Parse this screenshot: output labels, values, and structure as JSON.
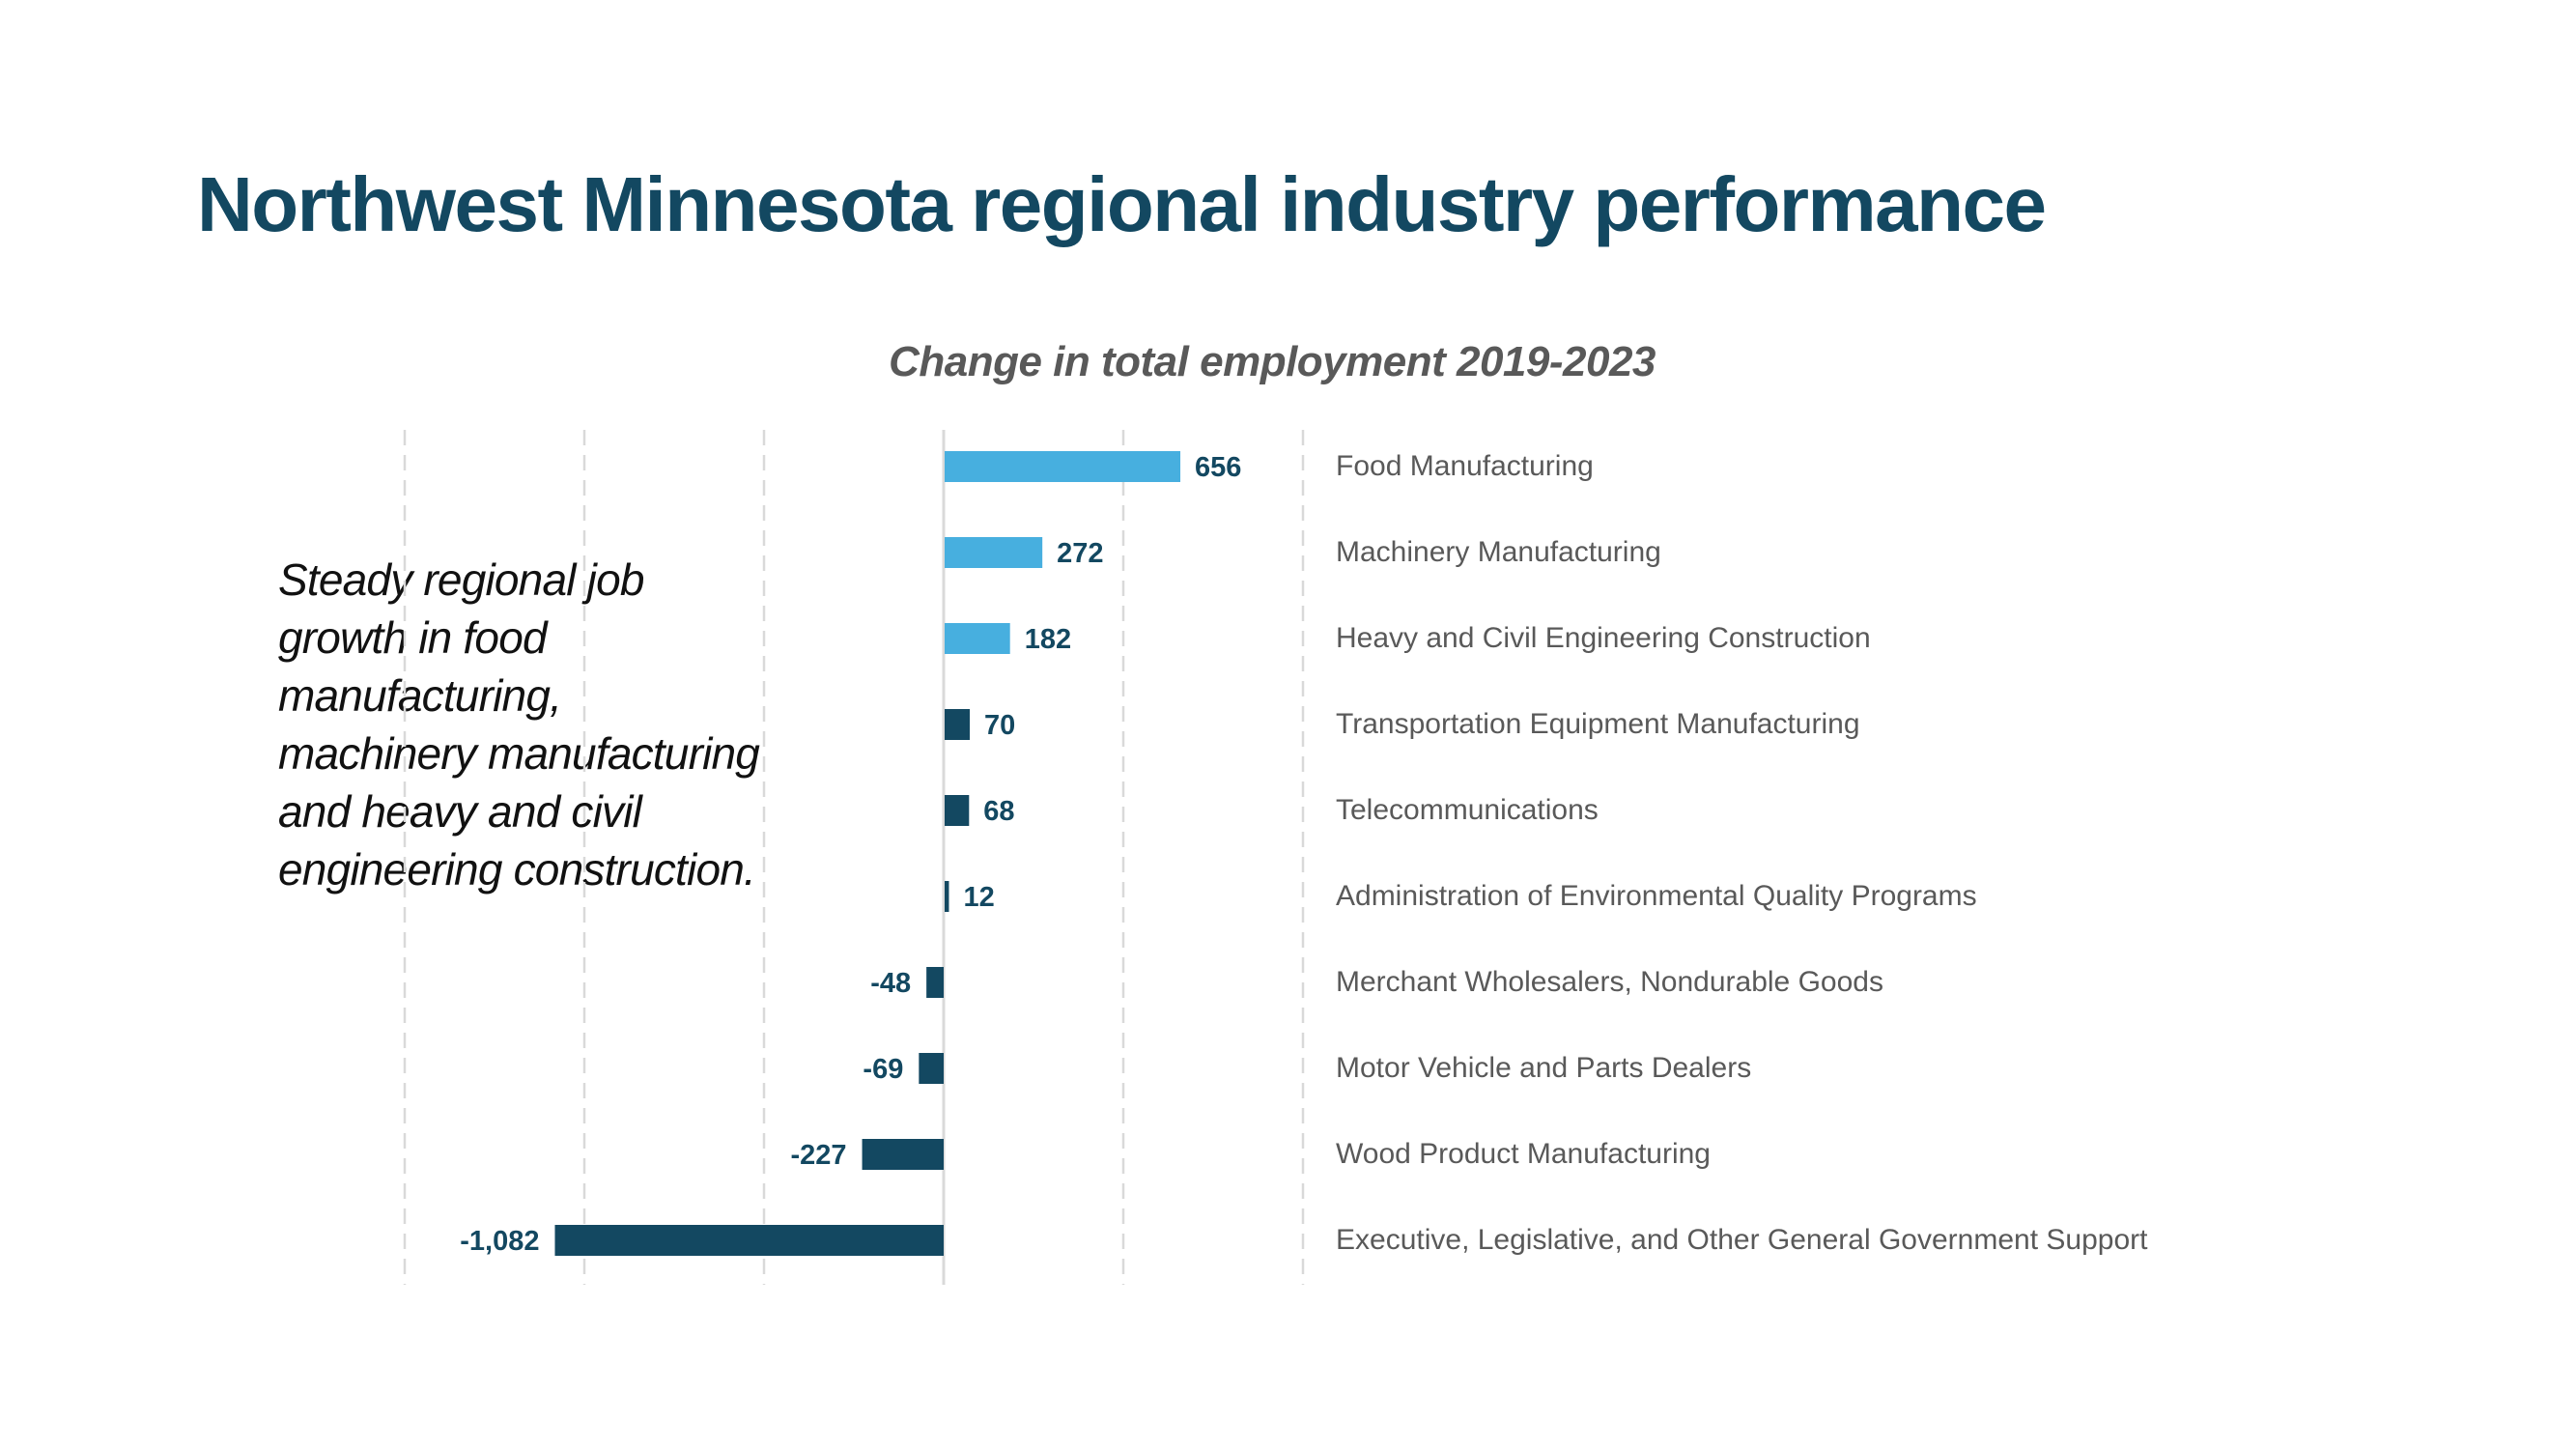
{
  "slide": {
    "title": "Northwest Minnesota regional industry performance",
    "callout_lines": [
      "Steady regional job",
      "growth in food",
      "manufacturing,",
      "machinery manufacturing",
      "and heavy and civil",
      "engineering construction."
    ]
  },
  "colors": {
    "title": "#134861",
    "highlight_bar": "#47AFDF",
    "default_bar": "#134861",
    "value_label": "#134861",
    "category_label": "#595959",
    "gridline": "#D9D9D9"
  },
  "chart_data": {
    "type": "bar",
    "orientation": "horizontal",
    "title": "Change in total employment 2019-2023",
    "xlabel": "",
    "ylabel": "",
    "xlim": [
      -1500,
      1000
    ],
    "grid_step": 500,
    "grid": true,
    "axis_tick_labels_visible": false,
    "category_labels_position": "right",
    "categories": [
      "Food Manufacturing",
      "Machinery Manufacturing",
      "Heavy and Civil Engineering Construction",
      "Transportation Equipment Manufacturing",
      "Telecommunications",
      "Administration of Environmental Quality Programs",
      "Merchant Wholesalers, Nondurable Goods",
      "Motor Vehicle and Parts Dealers",
      "Wood Product Manufacturing",
      "Executive, Legislative, and Other General Government Support"
    ],
    "values": [
      656,
      272,
      182,
      70,
      68,
      12,
      -48,
      -69,
      -227,
      -1082
    ],
    "value_labels": [
      "656",
      "272",
      "182",
      "70",
      "68",
      "12",
      "-48",
      "-69",
      "-227",
      "-1,082"
    ],
    "highlighted": [
      true,
      true,
      true,
      false,
      false,
      false,
      false,
      false,
      false,
      false
    ]
  }
}
